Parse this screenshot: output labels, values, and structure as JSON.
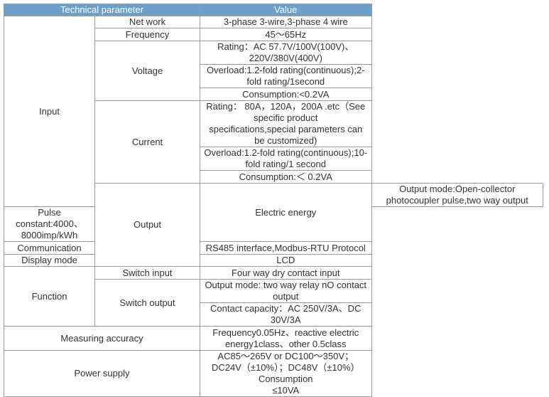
{
  "table": {
    "headers": [
      "Technical parameter",
      "Value"
    ],
    "input": {
      "label": "Input",
      "net_work": {
        "label": "Net work",
        "value": "3-phase 3-wire,3-phase 4 wire"
      },
      "frequency": {
        "label": "Frequency",
        "value": "45～65Hz"
      },
      "voltage": {
        "label": "Voltage",
        "rating": "Rating：AC 57.7V/100V(100V)、220V/380V(400V)",
        "overload": "Overload:1.2-fold rating(continuous);2-fold rating/1second",
        "consumption": "Consumption:<0.2VA"
      },
      "current": {
        "label": "Current",
        "rating_line1": "Rating： 80A，120A，200A .etc（See specific product",
        "rating_line2": "specifications,special parameters can be customized)",
        "overload": "Overload:1.2-fold rating(continuous);10-fold rating/1 second",
        "consumption": "Consumption:＜ 0.2VA"
      }
    },
    "output": {
      "label": "Output",
      "electric_energy": {
        "label": "Electric energy",
        "mode": "Output mode:Open-collector photocoupler pulse,two way output",
        "pulse": "Pulse constant:4000、8000imp/kWh"
      },
      "communication": {
        "label": "Communication",
        "value": "RS485 interface,Modbus-RTU Protocol"
      },
      "display_mode": {
        "label": "Display mode",
        "value": "LCD"
      }
    },
    "function": {
      "label": "Function",
      "switch_input": {
        "label": "Switch input",
        "value": "Four way dry contact input"
      },
      "switch_output": {
        "label": "Switch output",
        "mode": "Output mode: two way relay nO contact output",
        "capacity": "Contact capacity：AC 250V/3A、DC 30V/3A"
      }
    },
    "measuring_accuracy": {
      "label": "Measuring accuracy",
      "value": "Frequency0.05Hz、reactive electric energy1class、other 0.5class"
    },
    "power_supply": {
      "label": "Power supply",
      "line1": "AC85～265V or DC100～350V；DC24V（±10%）；DC48V（±10%）",
      "line2": "Consumption",
      "line3": "≤10VA"
    }
  }
}
